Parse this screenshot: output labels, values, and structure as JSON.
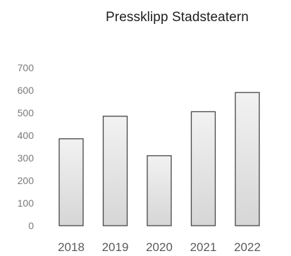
{
  "chart_data": {
    "type": "bar",
    "title": "Pressklipp Stadsteatern",
    "xlabel": "",
    "ylabel": "",
    "categories": [
      "2018",
      "2019",
      "2020",
      "2021",
      "2022"
    ],
    "values": [
      385,
      485,
      310,
      505,
      590
    ],
    "ylim": [
      0,
      700
    ],
    "yticks": [
      0,
      100,
      200,
      300,
      400,
      500,
      600,
      700
    ],
    "grid": false,
    "legend": "none",
    "bar_fill_top": "#f2f2f2",
    "bar_fill_bottom": "#d6d6d6",
    "bar_stroke": "#454545"
  }
}
